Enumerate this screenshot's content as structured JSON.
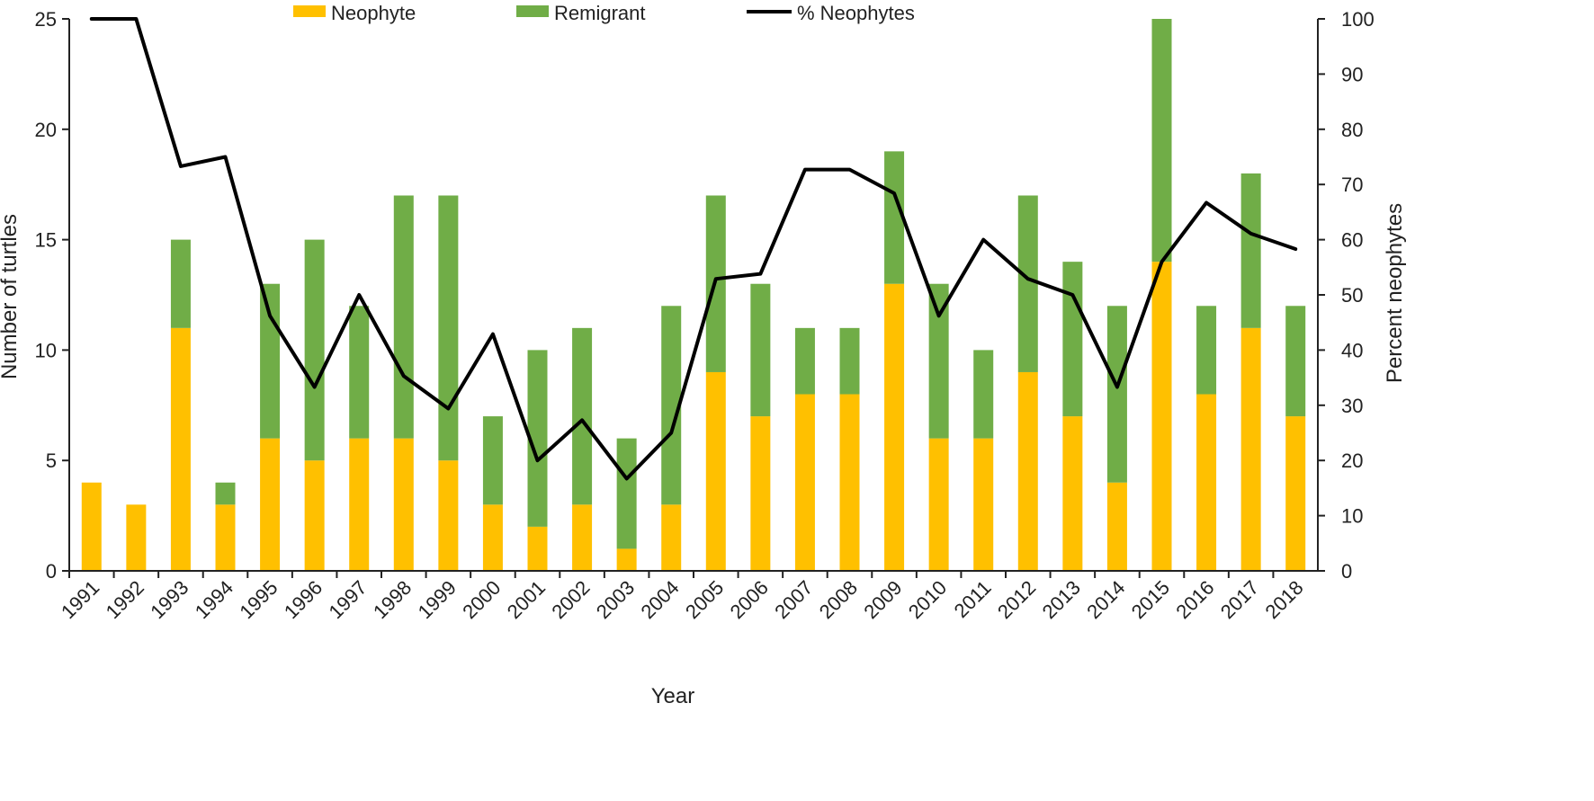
{
  "chart_data": {
    "type": "bar",
    "stacked": true,
    "title": "",
    "categories": [
      "1991",
      "1992",
      "1993",
      "1994",
      "1995",
      "1996",
      "1997",
      "1998",
      "1999",
      "2000",
      "2001",
      "2002",
      "2003",
      "2004",
      "2005",
      "2006",
      "2007",
      "2008",
      "2009",
      "2010",
      "2011",
      "2012",
      "2013",
      "2014",
      "2015",
      "2016",
      "2017",
      "2018"
    ],
    "series": [
      {
        "name": "Neophyte",
        "type": "bar",
        "color": "#FFC000",
        "axis": "left",
        "values": [
          4,
          3,
          11,
          3,
          6,
          5,
          6,
          6,
          5,
          3,
          2,
          3,
          1,
          3,
          9,
          7,
          8,
          8,
          13,
          6,
          6,
          9,
          7,
          4,
          14,
          8,
          11,
          7
        ]
      },
      {
        "name": "Remigrant",
        "type": "bar",
        "color": "#70AD47",
        "axis": "left",
        "values": [
          0,
          0,
          4,
          1,
          7,
          10,
          6,
          11,
          12,
          4,
          8,
          8,
          5,
          9,
          8,
          6,
          3,
          3,
          6,
          7,
          4,
          8,
          7,
          8,
          11,
          4,
          7,
          5
        ]
      },
      {
        "name": "% Neophytes",
        "type": "line",
        "color": "#000000",
        "axis": "right",
        "values": [
          100,
          100,
          73.3,
          75,
          46.2,
          33.3,
          50,
          35.3,
          29.4,
          42.9,
          20,
          27.3,
          16.7,
          25,
          52.9,
          53.8,
          72.7,
          72.7,
          68.4,
          46.2,
          60,
          52.9,
          50,
          33.3,
          56,
          66.7,
          61.1,
          58.3
        ]
      }
    ],
    "xlabel": "Year",
    "ylabel": "Number of turtles",
    "y2label": "Percent neophytes",
    "ylim": [
      0,
      25
    ],
    "yticks": [
      0,
      5,
      10,
      15,
      20,
      25
    ],
    "y2lim": [
      0,
      100
    ],
    "y2ticks": [
      0,
      10,
      20,
      30,
      40,
      50,
      60,
      70,
      80,
      90,
      100
    ],
    "legend_position": "top",
    "grid": false
  }
}
